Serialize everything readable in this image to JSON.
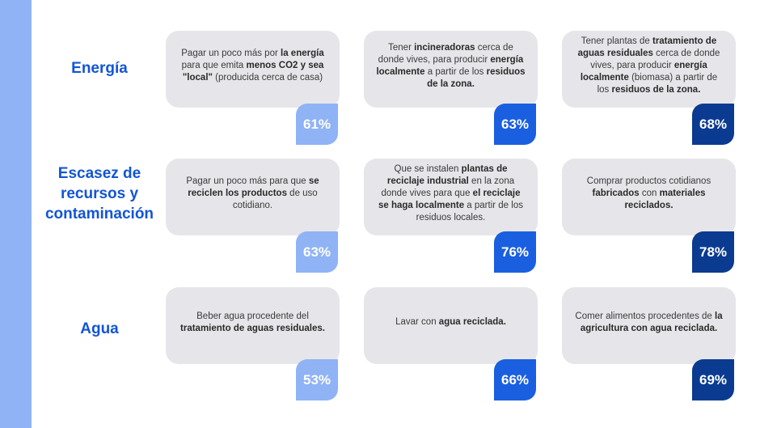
{
  "colors": {
    "light": "#8fb3f5",
    "mid": "#1a5fe0",
    "dark": "#0b3b91",
    "accent_text": "#1255d4",
    "card_bg": "#e6e6ea"
  },
  "rows": [
    {
      "label": "Energía",
      "items": [
        {
          "parts": [
            [
              "Pagar un poco más por ",
              false
            ],
            [
              "la energía",
              true
            ],
            [
              " para que emita ",
              false
            ],
            [
              "menos CO2 y sea \"local\"",
              true
            ],
            [
              " (producida cerca de casa)",
              false
            ]
          ],
          "percent": "61%",
          "shade": "light"
        },
        {
          "parts": [
            [
              "Tener ",
              false
            ],
            [
              "incineradoras",
              true
            ],
            [
              " cerca de donde vives, para producir ",
              false
            ],
            [
              "energía localmente",
              true
            ],
            [
              " a partir de los ",
              false
            ],
            [
              "residuos de la zona.",
              true
            ]
          ],
          "percent": "63%",
          "shade": "mid"
        },
        {
          "parts": [
            [
              "Tener plantas de ",
              false
            ],
            [
              "tratamiento de aguas residuales",
              true
            ],
            [
              " cerca de donde vives, para producir ",
              false
            ],
            [
              "energía localmente",
              true
            ],
            [
              " (biomasa) a partir de los ",
              false
            ],
            [
              "residuos de la zona.",
              true
            ]
          ],
          "percent": "68%",
          "shade": "dark"
        }
      ]
    },
    {
      "label": "Escasez de recursos y contaminación",
      "items": [
        {
          "parts": [
            [
              "Pagar un poco más para que ",
              false
            ],
            [
              "se reciclen los productos",
              true
            ],
            [
              " de uso cotidiano.",
              false
            ]
          ],
          "percent": "63%",
          "shade": "light"
        },
        {
          "parts": [
            [
              "Que se instalen ",
              false
            ],
            [
              "plantas de reciclaje industrial",
              true
            ],
            [
              " en la zona donde vives para que ",
              false
            ],
            [
              "el reciclaje se haga localmente",
              true
            ],
            [
              " a partir de los residuos locales.",
              false
            ]
          ],
          "percent": "76%",
          "shade": "mid"
        },
        {
          "parts": [
            [
              "Comprar productos cotidianos ",
              false
            ],
            [
              "fabricados",
              true
            ],
            [
              " con ",
              false
            ],
            [
              "materiales reciclados.",
              true
            ]
          ],
          "percent": "78%",
          "shade": "dark"
        }
      ]
    },
    {
      "label": "Agua",
      "items": [
        {
          "parts": [
            [
              "Beber agua procedente del ",
              false
            ],
            [
              "tratamiento de aguas residuales.",
              true
            ]
          ],
          "percent": "53%",
          "shade": "light"
        },
        {
          "parts": [
            [
              "Lavar con ",
              false
            ],
            [
              "agua reciclada.",
              true
            ]
          ],
          "percent": "66%",
          "shade": "mid"
        },
        {
          "parts": [
            [
              "Comer alimentos procedentes de ",
              false
            ],
            [
              "la agricultura con agua reciclada.",
              true
            ]
          ],
          "percent": "69%",
          "shade": "dark"
        }
      ]
    }
  ]
}
